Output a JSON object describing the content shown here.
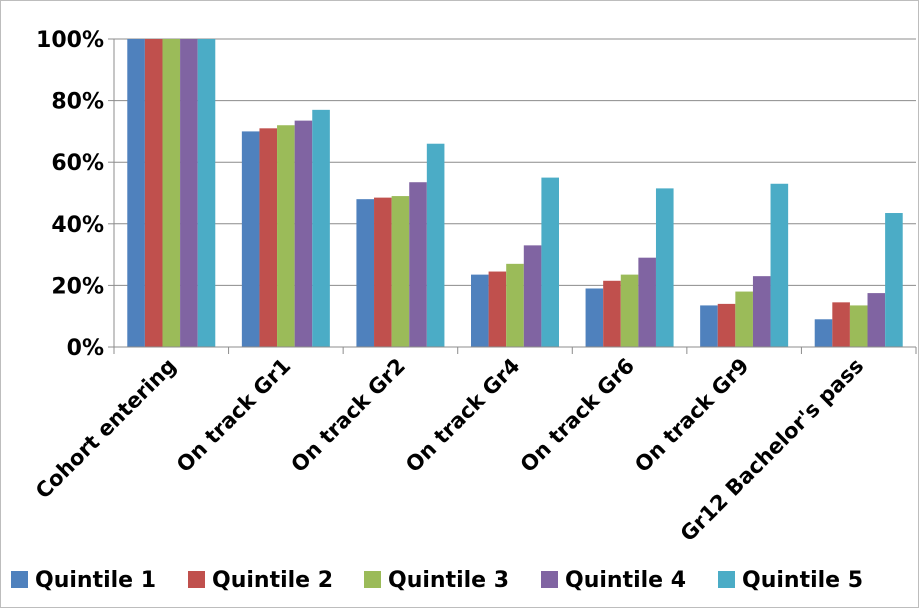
{
  "chart_data": {
    "type": "bar",
    "title": "",
    "xlabel": "",
    "ylabel": "",
    "ylim": [
      0,
      100
    ],
    "y_ticks": [
      "0%",
      "20%",
      "40%",
      "60%",
      "80%",
      "100%"
    ],
    "y_tick_values": [
      0,
      20,
      40,
      60,
      80,
      100
    ],
    "grid": true,
    "legend_position": "bottom",
    "categories": [
      "Cohort entering",
      "On track Gr1",
      "On track Gr2",
      "On track Gr4",
      "On track Gr6",
      "On track Gr9",
      "Gr12 Bachelor's pass"
    ],
    "series": [
      {
        "name": "Quintile 1",
        "color": "#4f81bd",
        "values": [
          100,
          70,
          48,
          23.5,
          19,
          13.5,
          9
        ]
      },
      {
        "name": "Quintile 2",
        "color": "#c0504d",
        "values": [
          100,
          71,
          48.5,
          24.5,
          21.5,
          14,
          14.5
        ]
      },
      {
        "name": "Quintile 3",
        "color": "#9bbb59",
        "values": [
          100,
          72,
          49,
          27,
          23.5,
          18,
          13.5
        ]
      },
      {
        "name": "Quintile 4",
        "color": "#8064a2",
        "values": [
          100,
          73.5,
          53.5,
          33,
          29,
          23,
          17.5
        ]
      },
      {
        "name": "Quintile 5",
        "color": "#4bacc6",
        "values": [
          100,
          77,
          66,
          55,
          51.5,
          53,
          43.5
        ]
      }
    ]
  }
}
